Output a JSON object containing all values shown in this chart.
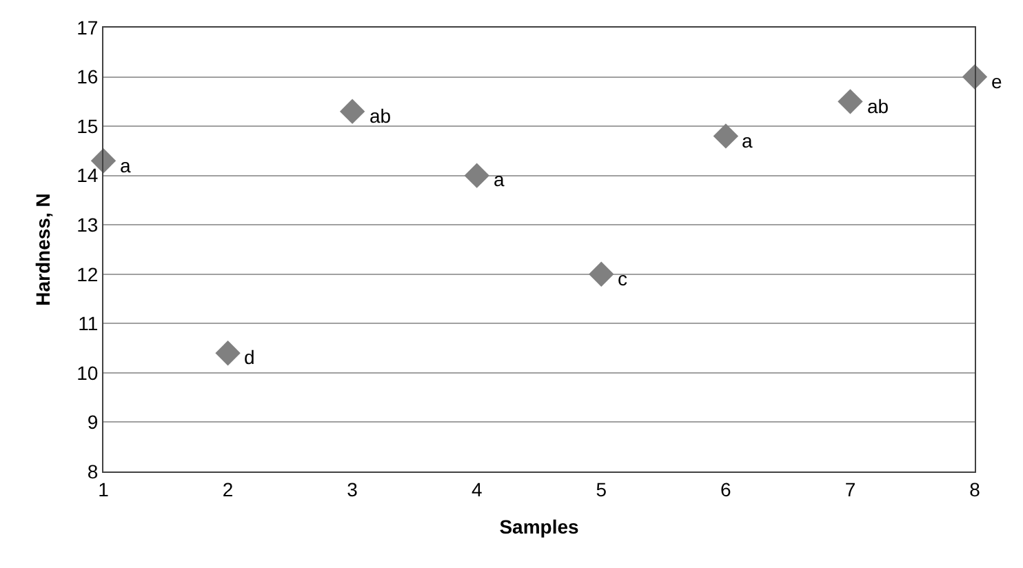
{
  "chart_data": {
    "type": "scatter",
    "xlabel": "Samples",
    "ylabel": "Hardness, N",
    "x": [
      1,
      2,
      3,
      4,
      5,
      6,
      7,
      8
    ],
    "series": [
      {
        "color": "#808080",
        "values": [
          14.3,
          10.4,
          15.3,
          14.0,
          12.0,
          14.8,
          15.5,
          16.0
        ]
      }
    ],
    "annotations": [
      {
        "text": "a",
        "x": 1,
        "y": 14.3
      },
      {
        "text": "d",
        "x": 2,
        "y": 10.4
      },
      {
        "text": "ab",
        "x": 3,
        "y": 15.3
      },
      {
        "text": "a",
        "x": 4,
        "y": 14.0
      },
      {
        "text": "c",
        "x": 5,
        "y": 12.0
      },
      {
        "text": "a",
        "x": 6,
        "y": 14.8
      },
      {
        "text": "ab",
        "x": 7,
        "y": 15.5
      },
      {
        "text": "e",
        "x": 8,
        "y": 16.0
      }
    ],
    "xlim": [
      1,
      8
    ],
    "xticks": [
      1,
      2,
      3,
      4,
      5,
      6,
      7,
      8
    ],
    "ylim": [
      8,
      17
    ],
    "yticks": [
      8,
      9,
      10,
      11,
      12,
      13,
      14,
      15,
      16,
      17
    ],
    "grid": "y",
    "marker": "diamond"
  }
}
